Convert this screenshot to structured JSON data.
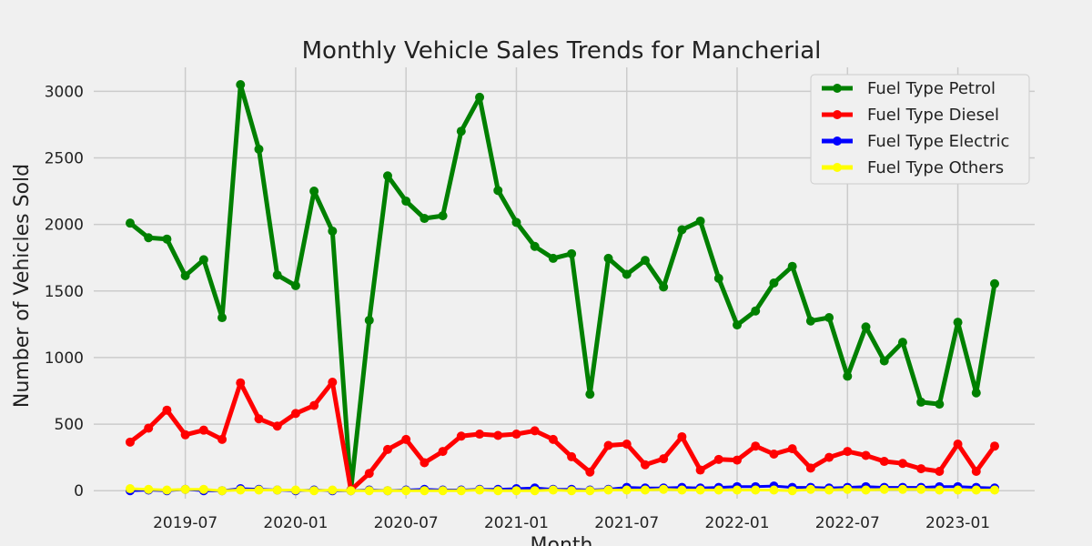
{
  "chart_data": {
    "type": "line",
    "title": "Monthly Vehicle Sales Trends for Mancherial",
    "xlabel": "Month",
    "ylabel": "Number of Vehicles Sold",
    "x": [
      "2019-04",
      "2019-05",
      "2019-06",
      "2019-07",
      "2019-08",
      "2019-09",
      "2019-10",
      "2019-11",
      "2019-12",
      "2020-01",
      "2020-02",
      "2020-03",
      "2020-04",
      "2020-05",
      "2020-06",
      "2020-07",
      "2020-08",
      "2020-09",
      "2020-10",
      "2020-11",
      "2020-12",
      "2021-01",
      "2021-02",
      "2021-03",
      "2021-04",
      "2021-05",
      "2021-06",
      "2021-07",
      "2021-08",
      "2021-09",
      "2021-10",
      "2021-11",
      "2021-12",
      "2022-01",
      "2022-02",
      "2022-03",
      "2022-04",
      "2022-05",
      "2022-06",
      "2022-07",
      "2022-08",
      "2022-09",
      "2022-10",
      "2022-11",
      "2022-12",
      "2023-01",
      "2023-02",
      "2023-03"
    ],
    "x_ticks": [
      "2019-07",
      "2020-01",
      "2020-07",
      "2021-01",
      "2021-07",
      "2022-01",
      "2022-07",
      "2023-01"
    ],
    "y_ticks": [
      0,
      500,
      1000,
      1500,
      2000,
      2500,
      3000
    ],
    "ylim": [
      -60,
      3180
    ],
    "grid": true,
    "legend_position": "top-right",
    "series": [
      {
        "name": "Fuel Type Petrol",
        "color": "#008000",
        "values": [
          2010,
          1900,
          1890,
          1615,
          1735,
          1300,
          3050,
          2565,
          1620,
          1540,
          2250,
          1950,
          5,
          1280,
          2365,
          2175,
          2045,
          2065,
          2700,
          2955,
          2255,
          2015,
          1835,
          1745,
          1780,
          725,
          1745,
          1625,
          1730,
          1530,
          1960,
          2025,
          1595,
          1245,
          1350,
          1560,
          1685,
          1275,
          1300,
          860,
          1230,
          975,
          1115,
          665,
          650,
          1265,
          735,
          1555
        ]
      },
      {
        "name": "Fuel Type Diesel",
        "color": "#ff0000",
        "values": [
          365,
          470,
          605,
          420,
          455,
          385,
          810,
          540,
          485,
          580,
          640,
          815,
          5,
          130,
          310,
          385,
          210,
          295,
          410,
          425,
          415,
          425,
          450,
          385,
          255,
          140,
          340,
          350,
          195,
          240,
          405,
          155,
          235,
          230,
          335,
          275,
          315,
          170,
          250,
          295,
          265,
          220,
          205,
          165,
          145,
          350,
          145,
          335
        ]
      },
      {
        "name": "Fuel Type Electric",
        "color": "#0000ff",
        "values": [
          0,
          5,
          0,
          10,
          0,
          0,
          15,
          10,
          5,
          0,
          5,
          0,
          0,
          5,
          0,
          5,
          10,
          5,
          5,
          10,
          10,
          15,
          20,
          10,
          10,
          5,
          10,
          25,
          20,
          20,
          25,
          20,
          25,
          30,
          30,
          35,
          25,
          25,
          20,
          25,
          30,
          25,
          25,
          25,
          30,
          30,
          25,
          20
        ]
      },
      {
        "name": "Fuel Type Others",
        "color": "#ffff00",
        "values": [
          15,
          10,
          5,
          10,
          10,
          0,
          5,
          5,
          5,
          5,
          0,
          5,
          0,
          0,
          0,
          0,
          0,
          0,
          0,
          5,
          0,
          0,
          0,
          5,
          0,
          0,
          5,
          5,
          5,
          10,
          5,
          5,
          5,
          5,
          5,
          5,
          0,
          10,
          5,
          10,
          5,
          10,
          10,
          10,
          5,
          5,
          5,
          5
        ]
      }
    ]
  }
}
